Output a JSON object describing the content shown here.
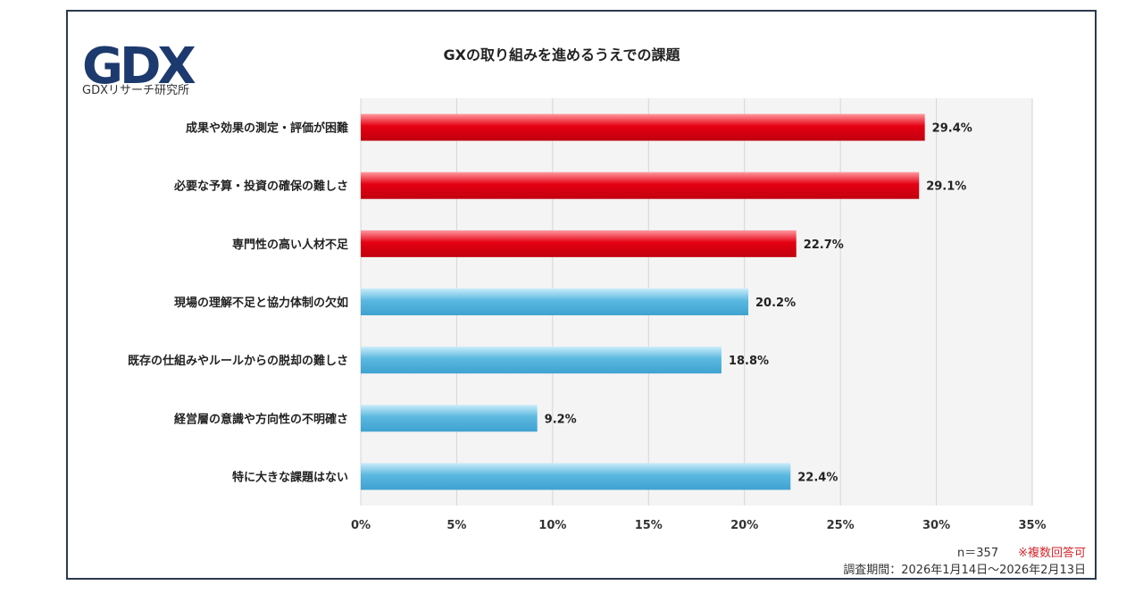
{
  "brand": {
    "logo_text": "GDXリサーチ研究所",
    "logo_color": "#1d3a6e",
    "logo_accent": "#8a96a8"
  },
  "chart_data": {
    "type": "bar",
    "orientation": "horizontal",
    "title": "GXの取り組みを進めるうえでの課題",
    "categories": [
      "成果や効果の測定・評価が困難",
      "必要な予算・投資の確保の難しさ",
      "専門性の高い人材不足",
      "現場の理解不足と協力体制の欠如",
      "既存の仕組みやルールからの脱却の難しさ",
      "経営層の意識や方向性の不明確さ",
      "特に大きな課題はない"
    ],
    "values": [
      29.4,
      29.1,
      22.7,
      20.2,
      18.8,
      9.2,
      22.4
    ],
    "value_labels": [
      "29.4%",
      "29.1%",
      "22.7%",
      "20.2%",
      "18.8%",
      "9.2%",
      "22.4%"
    ],
    "bar_colors": [
      "#e50012",
      "#e50012",
      "#e50012",
      "#5bb8e0",
      "#5bb8e0",
      "#5bb8e0",
      "#5bb8e0"
    ],
    "xlim": [
      0,
      35
    ],
    "xticks": [
      0,
      5,
      10,
      15,
      20,
      25,
      30,
      35
    ],
    "xtick_labels": [
      "0%",
      "5%",
      "10%",
      "15%",
      "20%",
      "25%",
      "30%",
      "35%"
    ],
    "grid": true,
    "plot_background": "#f4f4f4"
  },
  "notes": {
    "sample": "n＝357",
    "multi_answer": "※複数回答可",
    "period": "調査期間：2026年1月14日～2026年2月13日"
  }
}
